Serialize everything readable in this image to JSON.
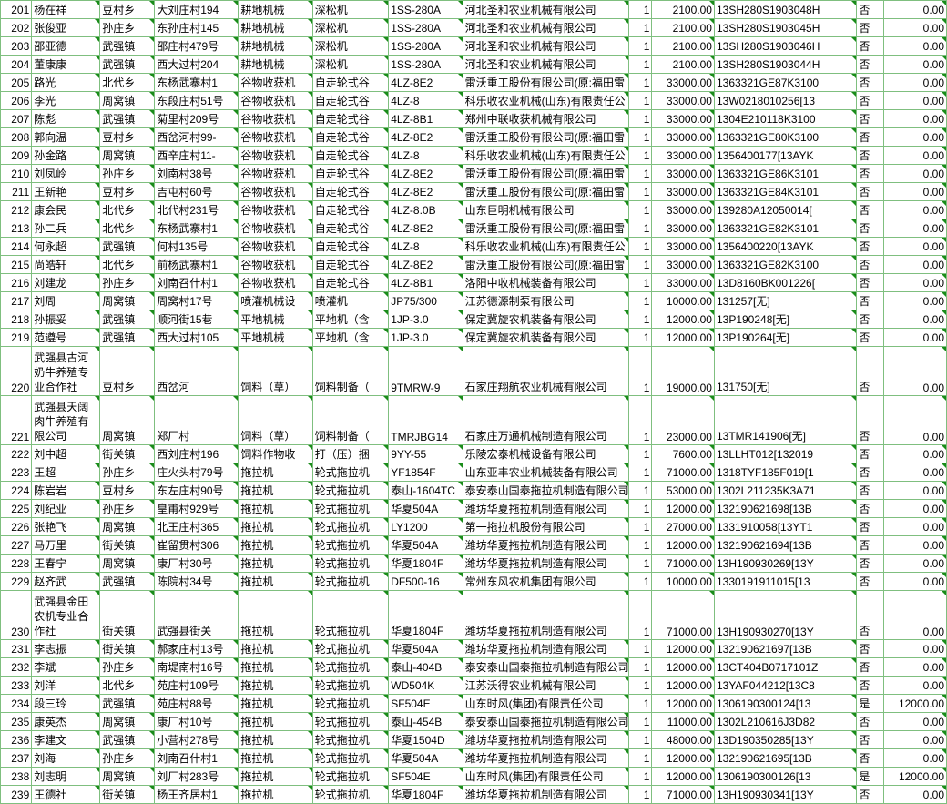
{
  "columns": {
    "widths": [
      32,
      70,
      56,
      86,
      76,
      78,
      76,
      170,
      24,
      64,
      146,
      28,
      64
    ],
    "align": [
      "right",
      "left",
      "left",
      "left",
      "left",
      "left",
      "left",
      "left",
      "right",
      "right",
      "left",
      "left",
      "right"
    ]
  },
  "style": {
    "border_color": "#7fbf7f",
    "text_color": "#000000",
    "font_size": 12,
    "mark_color": "#1a8c1a",
    "background": "#ffffff"
  },
  "rows": [
    {
      "n": 201,
      "c": [
        "杨在祥",
        "豆村乡",
        "大刘庄村194",
        "耕地机械",
        "深松机",
        "1SS-280A",
        "河北圣和农业机械有限公司",
        "1",
        "2100.00",
        "13SH280S1903048H",
        "否",
        "0.00"
      ]
    },
    {
      "n": 202,
      "c": [
        "张俊亚",
        "孙庄乡",
        "东孙庄村145",
        "耕地机械",
        "深松机",
        "1SS-280A",
        "河北圣和农业机械有限公司",
        "1",
        "2100.00",
        "13SH280S1903045H",
        "否",
        "0.00"
      ]
    },
    {
      "n": 203,
      "c": [
        "邵亚德",
        "武强镇",
        "邵庄村479号",
        "耕地机械",
        "深松机",
        "1SS-280A",
        "河北圣和农业机械有限公司",
        "1",
        "2100.00",
        "13SH280S1903046H",
        "否",
        "0.00"
      ]
    },
    {
      "n": 204,
      "c": [
        "董康康",
        "武强镇",
        "西大过村204",
        "耕地机械",
        "深松机",
        "1SS-280A",
        "河北圣和农业机械有限公司",
        "1",
        "2100.00",
        "13SH280S1903044H",
        "否",
        "0.00"
      ]
    },
    {
      "n": 205,
      "c": [
        "路光",
        "北代乡",
        "东杨武寨村1",
        "谷物收获机",
        "自走轮式谷",
        "4LZ-8E2",
        "雷沃重工股份有限公司(原:福田雷",
        "1",
        "33000.00",
        "1363321GE87K3100",
        "否",
        "0.00"
      ]
    },
    {
      "n": 206,
      "c": [
        "李光",
        "周窝镇",
        "东段庄村51号",
        "谷物收获机",
        "自走轮式谷",
        "4LZ-8",
        "科乐收农业机械(山东)有限责任公",
        "1",
        "33000.00",
        "13W0218010256[13",
        "否",
        "0.00"
      ]
    },
    {
      "n": 207,
      "c": [
        "陈彪",
        "武强镇",
        "菊里村209号",
        "谷物收获机",
        "自走轮式谷",
        "4LZ-8B1",
        "郑州中联收获机械有限公司",
        "1",
        "33000.00",
        "1304E210118K3100",
        "否",
        "0.00"
      ]
    },
    {
      "n": 208,
      "c": [
        "郭向温",
        "豆村乡",
        "西岔河村99-",
        "谷物收获机",
        "自走轮式谷",
        "4LZ-8E2",
        "雷沃重工股份有限公司(原:福田雷",
        "1",
        "33000.00",
        "1363321GE80K3100",
        "否",
        "0.00"
      ]
    },
    {
      "n": 209,
      "c": [
        "孙金路",
        "周窝镇",
        "西辛庄村11-",
        "谷物收获机",
        "自走轮式谷",
        "4LZ-8",
        "科乐收农业机械(山东)有限责任公",
        "1",
        "33000.00",
        "1356400177[13AYK",
        "否",
        "0.00"
      ]
    },
    {
      "n": 210,
      "c": [
        "刘凤岭",
        "孙庄乡",
        "刘南村38号",
        "谷物收获机",
        "自走轮式谷",
        "4LZ-8E2",
        "雷沃重工股份有限公司(原:福田雷",
        "1",
        "33000.00",
        "1363321GE86K3101",
        "否",
        "0.00"
      ]
    },
    {
      "n": 211,
      "c": [
        "王新艳",
        "豆村乡",
        "吉屯村60号",
        "谷物收获机",
        "自走轮式谷",
        "4LZ-8E2",
        "雷沃重工股份有限公司(原:福田雷",
        "1",
        "33000.00",
        "1363321GE84K3101",
        "否",
        "0.00"
      ]
    },
    {
      "n": 212,
      "c": [
        "康会民",
        "北代乡",
        "北代村231号",
        "谷物收获机",
        "自走轮式谷",
        "4LZ-8.0B",
        "山东巨明机械有限公司",
        "1",
        "33000.00",
        "139280A12050014[",
        "否",
        "0.00"
      ]
    },
    {
      "n": 213,
      "c": [
        "孙二兵",
        "北代乡",
        "东杨武寨村1",
        "谷物收获机",
        "自走轮式谷",
        "4LZ-8E2",
        "雷沃重工股份有限公司(原:福田雷",
        "1",
        "33000.00",
        "1363321GE82K3101",
        "否",
        "0.00"
      ]
    },
    {
      "n": 214,
      "c": [
        "何永超",
        "武强镇",
        "何村135号",
        "谷物收获机",
        "自走轮式谷",
        "4LZ-8",
        "科乐收农业机械(山东)有限责任公",
        "1",
        "33000.00",
        "1356400220[13AYK",
        "否",
        "0.00"
      ]
    },
    {
      "n": 215,
      "c": [
        "尚皓轩",
        "北代乡",
        "前杨武寨村1",
        "谷物收获机",
        "自走轮式谷",
        "4LZ-8E2",
        "雷沃重工股份有限公司(原:福田雷",
        "1",
        "33000.00",
        "1363321GE82K3100",
        "否",
        "0.00"
      ]
    },
    {
      "n": 216,
      "c": [
        "刘建龙",
        "孙庄乡",
        "刘南召什村1",
        "谷物收获机",
        "自走轮式谷",
        "4LZ-8B1",
        "洛阳中收机械装备有限公司",
        "1",
        "33000.00",
        "13D8160BK001226[",
        "否",
        "0.00"
      ]
    },
    {
      "n": 217,
      "c": [
        "刘周",
        "周窝镇",
        "周窝村17号",
        "喷灌机械设",
        "喷灌机",
        "JP75/300",
        "江苏德源制泵有限公司",
        "1",
        "10000.00",
        "131257[无]",
        "否",
        "0.00"
      ]
    },
    {
      "n": 218,
      "c": [
        "孙振妥",
        "武强镇",
        "顺河街15巷",
        "平地机械",
        "平地机（含",
        "1JP-3.0",
        "保定冀旋农机装备有限公司",
        "1",
        "12000.00",
        "13P190248[无]",
        "否",
        "0.00"
      ]
    },
    {
      "n": 219,
      "c": [
        "范遵号",
        "武强镇",
        "西大过村105",
        "平地机械",
        "平地机（含",
        "1JP-3.0",
        "保定冀旋农机装备有限公司",
        "1",
        "12000.00",
        "13P190264[无]",
        "否",
        "0.00"
      ]
    },
    {
      "n": 220,
      "tall": true,
      "c": [
        "武强县古河奶牛养殖专业合作社",
        "豆村乡",
        "西岔河",
        "饲料（草）",
        "饲料制备（",
        "9TMRW-9",
        "石家庄翔航农业机械有限公司",
        "1",
        "19000.00",
        "131750[无]",
        "否",
        "0.00"
      ]
    },
    {
      "n": 221,
      "tall": true,
      "c": [
        "武强县天阔肉牛养殖有限公司",
        "周窝镇",
        "郑厂村",
        "饲料（草）",
        "饲料制备（",
        "TMRJBG14",
        "石家庄万通机械制造有限公司",
        "1",
        "23000.00",
        "13TMR141906[无]",
        "否",
        "0.00"
      ]
    },
    {
      "n": 222,
      "c": [
        "刘中超",
        "街关镇",
        "西刘庄村196",
        "饲料作物收",
        "打（压）捆",
        "9YY-55",
        "乐陵宏泰机械设备有限公司",
        "1",
        "7600.00",
        "13LLHT012[132019",
        "否",
        "0.00"
      ]
    },
    {
      "n": 223,
      "c": [
        "王超",
        "孙庄乡",
        "庄火头村79号",
        "拖拉机",
        "轮式拖拉机",
        "YF1854F",
        "山东亚丰农业机械装备有限公司",
        "1",
        "71000.00",
        "1318TYF185F019[1",
        "否",
        "0.00"
      ]
    },
    {
      "n": 224,
      "c": [
        "陈岩岩",
        "豆村乡",
        "东左庄村90号",
        "拖拉机",
        "轮式拖拉机",
        "泰山-1604TC",
        "泰安泰山国泰拖拉机制造有限公司",
        "1",
        "53000.00",
        "1302L211235K3A71",
        "否",
        "0.00"
      ]
    },
    {
      "n": 225,
      "c": [
        "刘纪业",
        "孙庄乡",
        "皇甫村929号",
        "拖拉机",
        "轮式拖拉机",
        "华夏504A",
        "潍坊华夏拖拉机制造有限公司",
        "1",
        "12000.00",
        "132190621698[13B",
        "否",
        "0.00"
      ]
    },
    {
      "n": 226,
      "c": [
        "张艳飞",
        "周窝镇",
        "北王庄村365",
        "拖拉机",
        "轮式拖拉机",
        "LY1200",
        "第一拖拉机股份有限公司",
        "1",
        "27000.00",
        "1331910058[13YT1",
        "否",
        "0.00"
      ]
    },
    {
      "n": 227,
      "c": [
        "马万里",
        "街关镇",
        "崔留贯村306",
        "拖拉机",
        "轮式拖拉机",
        "华夏504A",
        "潍坊华夏拖拉机制造有限公司",
        "1",
        "12000.00",
        "132190621694[13B",
        "否",
        "0.00"
      ]
    },
    {
      "n": 228,
      "c": [
        "王春宁",
        "周窝镇",
        "康厂村30号",
        "拖拉机",
        "轮式拖拉机",
        "华夏1804F",
        "潍坊华夏拖拉机制造有限公司",
        "1",
        "71000.00",
        "13H190930269[13Y",
        "否",
        "0.00"
      ]
    },
    {
      "n": 229,
      "c": [
        "赵齐武",
        "武强镇",
        "陈院村34号",
        "拖拉机",
        "轮式拖拉机",
        "DF500-16",
        "常州东风农机集团有限公司",
        "1",
        "10000.00",
        "1330191911015[13",
        "否",
        "0.00"
      ]
    },
    {
      "n": 230,
      "tall": true,
      "c": [
        "武强县金田农机专业合作社",
        "街关镇",
        "武强县街关",
        "拖拉机",
        "轮式拖拉机",
        "华夏1804F",
        "潍坊华夏拖拉机制造有限公司",
        "1",
        "71000.00",
        "13H190930270[13Y",
        "否",
        "0.00"
      ]
    },
    {
      "n": 231,
      "c": [
        "李志振",
        "街关镇",
        "郝家庄村13号",
        "拖拉机",
        "轮式拖拉机",
        "华夏504A",
        "潍坊华夏拖拉机制造有限公司",
        "1",
        "12000.00",
        "132190621697[13B",
        "否",
        "0.00"
      ]
    },
    {
      "n": 232,
      "c": [
        "李斌",
        "孙庄乡",
        "南堤南村16号",
        "拖拉机",
        "轮式拖拉机",
        "泰山-404B",
        "泰安泰山国泰拖拉机制造有限公司",
        "1",
        "12000.00",
        "13CT404B0717101Z",
        "否",
        "0.00"
      ]
    },
    {
      "n": 233,
      "c": [
        "刘洋",
        "北代乡",
        "苑庄村109号",
        "拖拉机",
        "轮式拖拉机",
        "WD504K",
        "江苏沃得农业机械有限公司",
        "1",
        "12000.00",
        "13YAF044212[13C8",
        "否",
        "0.00"
      ]
    },
    {
      "n": 234,
      "c": [
        "段三玲",
        "武强镇",
        "苑庄村88号",
        "拖拉机",
        "轮式拖拉机",
        "SF504E",
        "山东时风(集团)有限责任公司",
        "1",
        "12000.00",
        "1306190300124[13",
        "是",
        "12000.00"
      ]
    },
    {
      "n": 235,
      "c": [
        "康英杰",
        "周窝镇",
        "康厂村10号",
        "拖拉机",
        "轮式拖拉机",
        "泰山-454B",
        "泰安泰山国泰拖拉机制造有限公司",
        "1",
        "11000.00",
        "1302L210616J3D82",
        "否",
        "0.00"
      ]
    },
    {
      "n": 236,
      "c": [
        "李建文",
        "武强镇",
        "小营村278号",
        "拖拉机",
        "轮式拖拉机",
        "华夏1504D",
        "潍坊华夏拖拉机制造有限公司",
        "1",
        "48000.00",
        "13D190350285[13Y",
        "否",
        "0.00"
      ]
    },
    {
      "n": 237,
      "c": [
        "刘海",
        "孙庄乡",
        "刘南召什村1",
        "拖拉机",
        "轮式拖拉机",
        "华夏504A",
        "潍坊华夏拖拉机制造有限公司",
        "1",
        "12000.00",
        "132190621695[13B",
        "否",
        "0.00"
      ]
    },
    {
      "n": 238,
      "c": [
        "刘志明",
        "周窝镇",
        "刘厂村283号",
        "拖拉机",
        "轮式拖拉机",
        "SF504E",
        "山东时风(集团)有限责任公司",
        "1",
        "12000.00",
        "1306190300126[13",
        "是",
        "12000.00"
      ]
    },
    {
      "n": 239,
      "c": [
        "王德社",
        "街关镇",
        "杨王齐居村1",
        "拖拉机",
        "轮式拖拉机",
        "华夏1804F",
        "潍坊华夏拖拉机制造有限公司",
        "1",
        "71000.00",
        "13H190930341[13Y",
        "否",
        "0.00"
      ]
    }
  ]
}
